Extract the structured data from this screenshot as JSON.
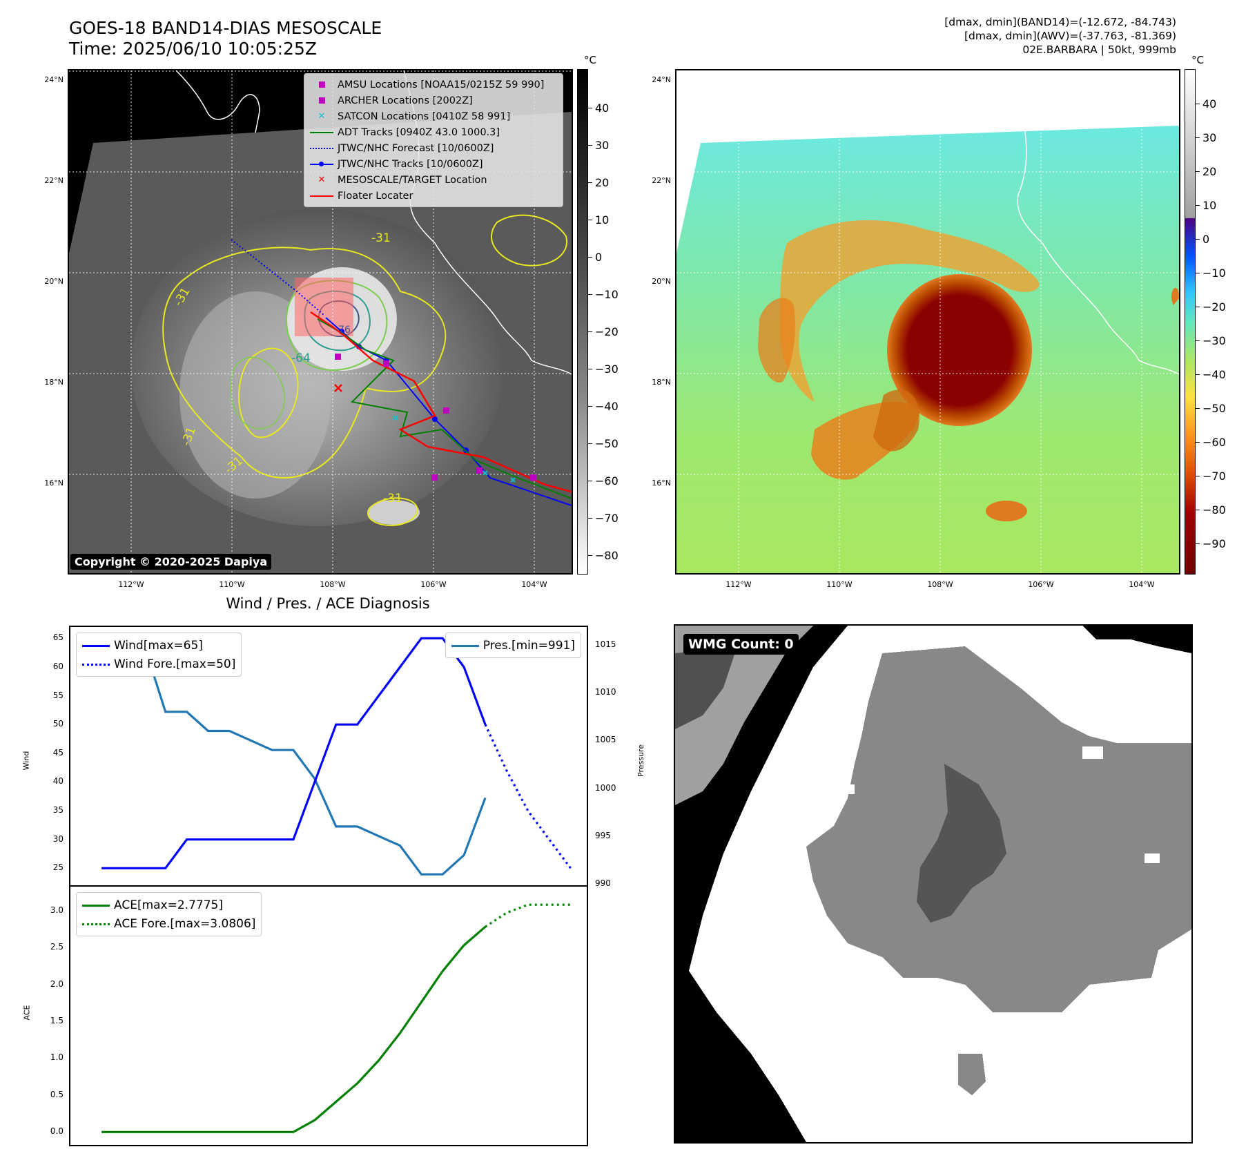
{
  "header": {
    "title_line1": "GOES-18 BAND14-DIAS MESOSCALE",
    "title_line2": "Time: 2025/06/10 10:05:25Z",
    "stats_line1": "[dmax, dmin](BAND14)=(-12.672, -84.743)",
    "stats_line2": "[dmax, dmin](AWV)=(-37.763, -81.369)",
    "stats_line3": "02E.BARBARA | 50kt, 999mb"
  },
  "map": {
    "lat_labels": [
      "24°N",
      "22°N",
      "20°N",
      "18°N",
      "16°N"
    ],
    "lon_labels": [
      "112°W",
      "110°W",
      "108°W",
      "106°W",
      "104°W"
    ],
    "contour_labels": [
      "-31",
      "-31",
      "-31",
      "-31",
      "-31",
      "-64",
      "-76"
    ],
    "copyright": "Copyright © 2020-2025 Dapiya",
    "legend": [
      {
        "label": "AMSU Locations [NOAA15/0215Z 59 990]",
        "symbol": "square",
        "color": "#bf00bf"
      },
      {
        "label": "ARCHER Locations [2002Z]",
        "symbol": "square",
        "color": "#bf00bf"
      },
      {
        "label": "SATCON Locations [0410Z 58 991]",
        "symbol": "x",
        "color": "#17becf"
      },
      {
        "label": "ADT Tracks [0940Z 43.0 1000.3]",
        "symbol": "line",
        "color": "#008000"
      },
      {
        "label": "JTWC/NHC Forecast [10/0600Z]",
        "symbol": "dotted",
        "color": "#0000ff"
      },
      {
        "label": "JTWC/NHC Tracks [10/0600Z]",
        "symbol": "line-dot",
        "color": "#0000ff"
      },
      {
        "label": "MESOSCALE/TARGET Location",
        "symbol": "x",
        "color": "#ff0000"
      },
      {
        "label": "Floater Locater",
        "symbol": "line",
        "color": "#ff0000"
      }
    ]
  },
  "colorbar_gray": {
    "unit": "°C",
    "ticks": [
      "40",
      "30",
      "20",
      "10",
      "0",
      "−10",
      "−20",
      "−30",
      "−40",
      "−50",
      "−60",
      "−70",
      "−80"
    ]
  },
  "colorbar_color": {
    "unit": "°C",
    "ticks": [
      "40",
      "30",
      "20",
      "10",
      "0",
      "−10",
      "−20",
      "−30",
      "−40",
      "−50",
      "−60",
      "−70",
      "−80",
      "−90"
    ]
  },
  "wmg": {
    "label": "WMG Count: 0"
  },
  "colors": {
    "wind": "#0000ff",
    "pressure": "#1f77b4",
    "ace": "#008000"
  },
  "chart_data": [
    {
      "type": "line",
      "title": "Wind / Pres. / ACE Diagnosis",
      "ylabel": "Wind",
      "ylabel_right": "Pressure",
      "ylim": [
        23,
        66
      ],
      "ylim_right": [
        990,
        1016
      ],
      "yticks": [
        "65",
        "60",
        "55",
        "50",
        "45",
        "40",
        "35",
        "30",
        "25"
      ],
      "yticks_right": [
        "1015",
        "1010",
        "1005",
        "1000",
        "995",
        "990"
      ],
      "x": [
        0,
        1,
        2,
        3,
        4,
        5,
        6,
        7,
        8,
        9,
        10,
        11,
        12,
        13,
        14,
        15,
        16,
        17,
        18,
        19
      ],
      "series": [
        {
          "name": "Wind[max=65]",
          "values": [
            25,
            25,
            25,
            25,
            30,
            30,
            30,
            30,
            30,
            30,
            40,
            50,
            50,
            55,
            60,
            65,
            65,
            60,
            50,
            null
          ]
        },
        {
          "name": "Wind Fore.[max=50]",
          "x": [
            18,
            19,
            20,
            21,
            22
          ],
          "values": [
            50,
            42,
            35,
            30,
            25
          ]
        },
        {
          "name": "Pres.[min=991]",
          "values": [
            1015,
            1015,
            1015,
            1008,
            1008,
            1006,
            1006,
            1005,
            1004,
            1004,
            1001,
            996,
            996,
            995,
            994,
            991,
            991,
            993,
            999,
            null
          ]
        }
      ]
    },
    {
      "type": "line",
      "ylabel": "ACE",
      "ylim": [
        -0.1,
        3.25
      ],
      "yticks": [
        "3.0",
        "2.5",
        "2.0",
        "1.5",
        "1.0",
        "0.5",
        "0.0"
      ],
      "x": [
        0,
        1,
        2,
        3,
        4,
        5,
        6,
        7,
        8,
        9,
        10,
        11,
        12,
        13,
        14,
        15,
        16,
        17,
        18
      ],
      "series": [
        {
          "name": "ACE[max=2.7775]",
          "values": [
            0,
            0,
            0,
            0,
            0,
            0,
            0,
            0,
            0,
            0,
            0.16,
            0.41,
            0.66,
            0.97,
            1.34,
            1.76,
            2.18,
            2.53,
            2.78
          ]
        },
        {
          "name": "ACE Fore.[max=3.0806]",
          "x": [
            18,
            19,
            20,
            21,
            22
          ],
          "values": [
            2.78,
            2.97,
            3.08,
            3.08,
            3.08
          ]
        }
      ]
    }
  ]
}
